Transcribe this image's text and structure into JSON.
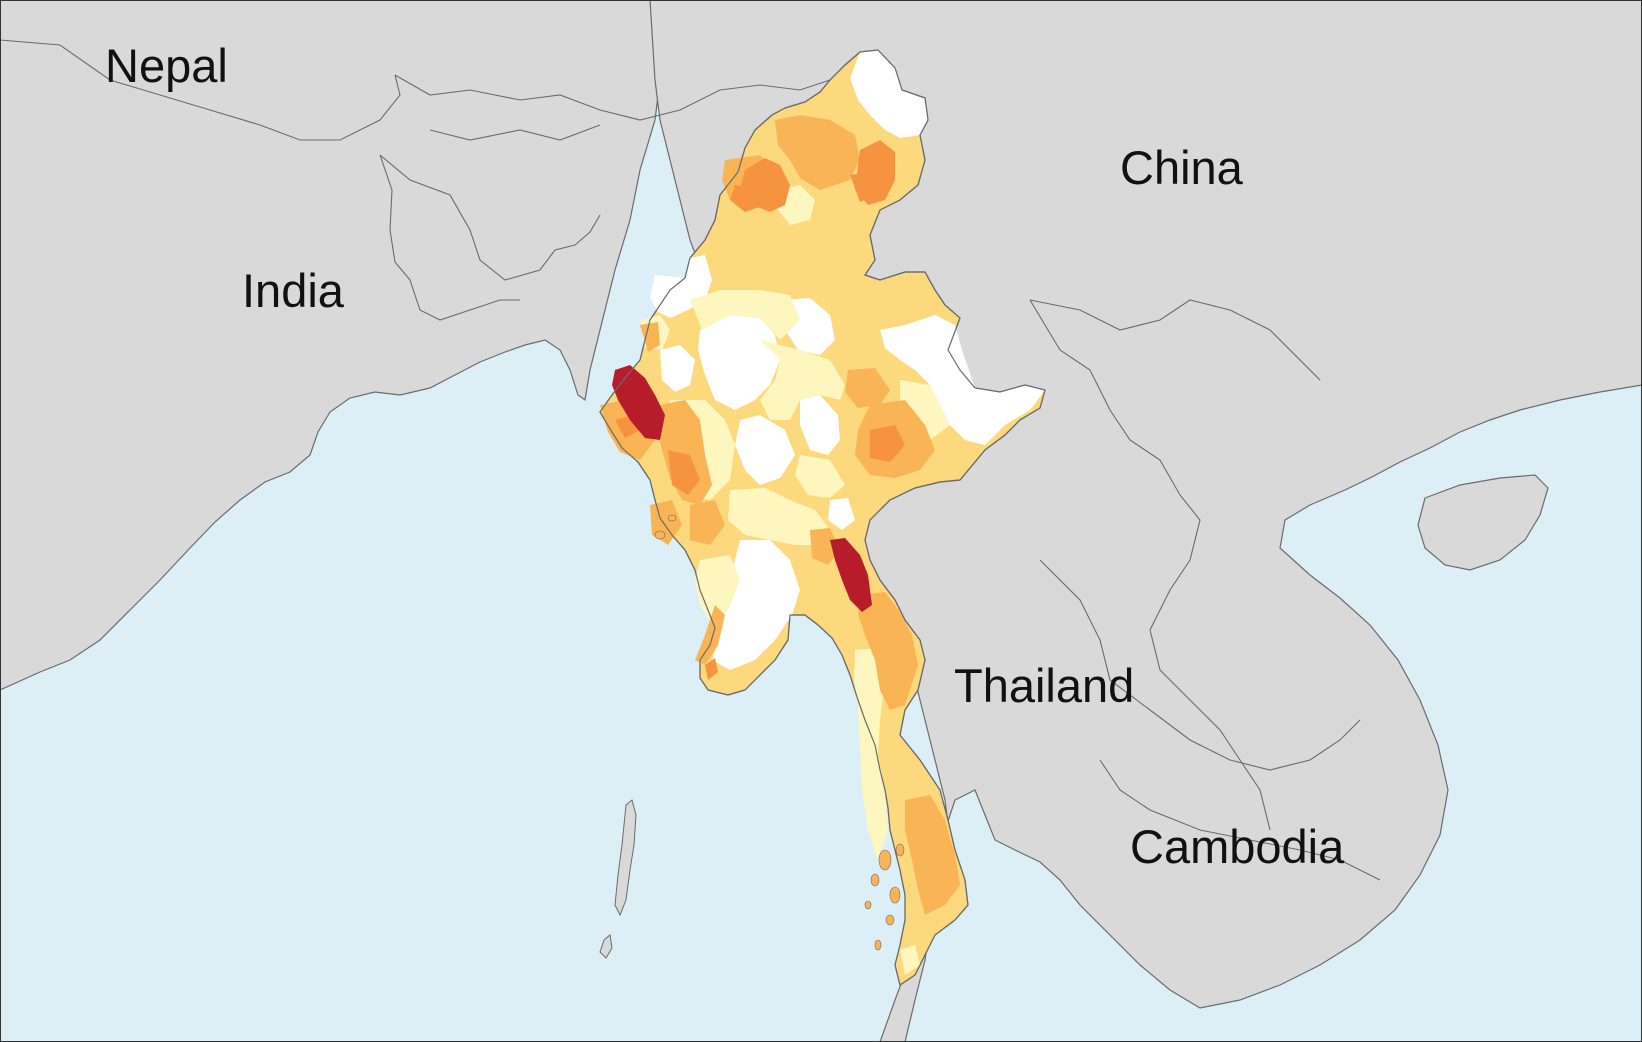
{
  "map": {
    "labels": {
      "nepal": "Nepal",
      "china": "China",
      "india": "India",
      "thailand": "Thailand",
      "cambodia": "Cambodia"
    },
    "colors": {
      "sea": "#dceff7",
      "land": "#d9d9d9",
      "border": "#6b6b6b",
      "white_region": "#ffffff",
      "pale_yellow": "#fdf6bf",
      "yellow": "#fcd97d",
      "light_orange": "#f9b456",
      "orange": "#f6933f",
      "dark_red": "#b71c2a"
    },
    "category_count": 6
  }
}
